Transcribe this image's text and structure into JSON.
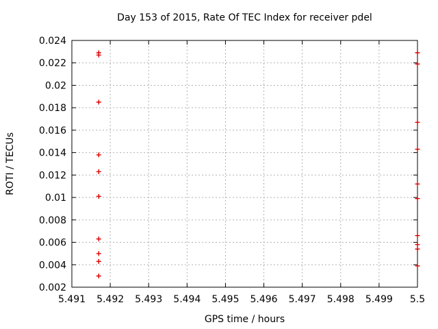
{
  "chart_data": {
    "type": "scatter",
    "title": "Day 153 of 2015, Rate Of TEC Index for receiver pdel",
    "xlabel": "GPS time / hours",
    "ylabel": "ROTI / TECUs",
    "xlim": [
      5.491,
      5.5
    ],
    "ylim": [
      0.002,
      0.024
    ],
    "xticks": {
      "values": [
        5.491,
        5.492,
        5.493,
        5.494,
        5.495,
        5.496,
        5.497,
        5.498,
        5.499,
        5.5
      ],
      "labels": [
        "5.491",
        "5.492",
        "5.493",
        "5.494",
        "5.495",
        "5.496",
        "5.497",
        "5.498",
        "5.499",
        "5.5"
      ]
    },
    "yticks": {
      "values": [
        0.002,
        0.004,
        0.006,
        0.008,
        0.01,
        0.012,
        0.014,
        0.016,
        0.018,
        0.02,
        0.022,
        0.024
      ],
      "labels": [
        "0.002",
        "0.004",
        "0.006",
        "0.008",
        "0.01",
        "0.012",
        "0.014",
        "0.016",
        "0.018",
        "0.02",
        "0.022",
        "0.024"
      ]
    },
    "grid": true,
    "legend": "none",
    "marker": "plus",
    "marker_color": "#dd0000",
    "grid_color": "#b0b0b0",
    "border_color": "#000000",
    "background_color": "#ffffff",
    "series": [
      {
        "name": "roti",
        "points": [
          [
            5.4917,
            0.0229
          ],
          [
            5.4917,
            0.0227
          ],
          [
            5.4917,
            0.0185
          ],
          [
            5.4917,
            0.0138
          ],
          [
            5.4917,
            0.0123
          ],
          [
            5.4917,
            0.0101
          ],
          [
            5.4917,
            0.0063
          ],
          [
            5.4917,
            0.005
          ],
          [
            5.4917,
            0.0043
          ],
          [
            5.4917,
            0.003
          ],
          [
            5.5,
            0.0229
          ],
          [
            5.5,
            0.0219
          ],
          [
            5.5,
            0.0167
          ],
          [
            5.5,
            0.0143
          ],
          [
            5.5,
            0.0112
          ],
          [
            5.5,
            0.0099
          ],
          [
            5.5,
            0.0066
          ],
          [
            5.5,
            0.0058
          ],
          [
            5.5,
            0.0054
          ],
          [
            5.5,
            0.0039
          ]
        ]
      }
    ]
  }
}
